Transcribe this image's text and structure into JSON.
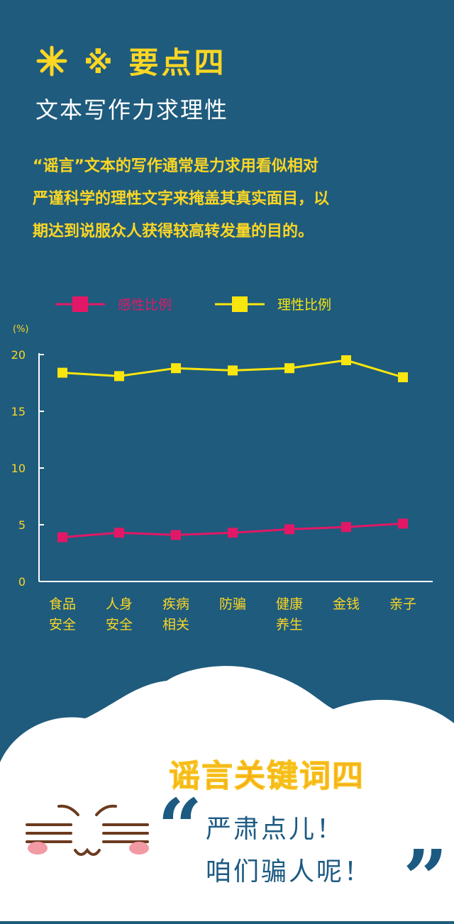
{
  "header": {
    "title": "※ 要点四",
    "subtitle": "文本写作力求理性"
  },
  "paragraph": [
    "“谣言”文本的写作通常是力求用看似相对",
    "严谨科学的理性文字来掩盖其真实面目，以",
    "期达到说服众人获得较高转发量的目的。"
  ],
  "colors": {
    "background": "#1f5b7d",
    "accent": "#fbd624",
    "emotional": "#e21866",
    "rational": "#f9e60e"
  },
  "chart_data": {
    "type": "line",
    "ylabel": "(%)",
    "ylim": [
      0,
      20
    ],
    "yticks": [
      0,
      5,
      10,
      15,
      20
    ],
    "categories": [
      [
        "食品",
        "安全"
      ],
      [
        "人身",
        "安全"
      ],
      [
        "疾病",
        "相关"
      ],
      [
        "防骗"
      ],
      [
        "健康",
        "养生"
      ],
      [
        "金钱"
      ],
      [
        "亲子"
      ]
    ],
    "series": [
      {
        "name": "感性比例",
        "color": "#e21866",
        "values": [
          3.9,
          4.3,
          4.1,
          4.3,
          4.6,
          4.8,
          5.1
        ]
      },
      {
        "name": "理性比例",
        "color": "#f9e60e",
        "values": [
          18.4,
          18.1,
          18.8,
          18.6,
          18.8,
          19.5,
          18.0
        ]
      }
    ],
    "grid": false,
    "legend_position": "top"
  },
  "bottom": {
    "keyword_title": "谣言关键词四",
    "quote_open": "“",
    "quote_close": "”",
    "lines": [
      "严肃点儿！",
      "咱们骗人呢！"
    ]
  }
}
